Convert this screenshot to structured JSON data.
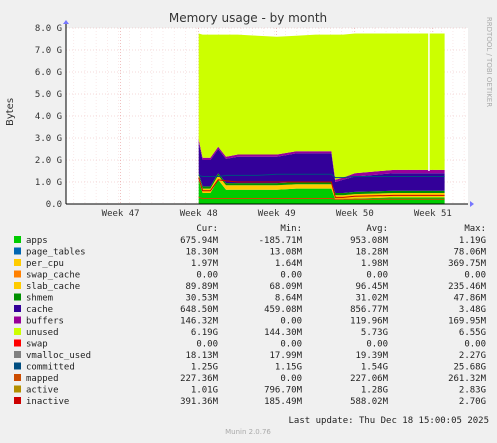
{
  "chart_data": {
    "type": "area",
    "title": "Memory usage - by month",
    "ylabel": "Bytes",
    "side_label": "RRDTOOL / TOBI OETIKER",
    "x_ticks": [
      "Week 47",
      "Week 48",
      "Week 49",
      "Week 50",
      "Week 51"
    ],
    "y_ticks": [
      "0.0",
      "1.0 G",
      "2.0 G",
      "3.0 G",
      "4.0 G",
      "5.0 G",
      "6.0 G",
      "7.0 G",
      "8.0 G"
    ],
    "ylim": [
      0,
      8.0
    ],
    "y_unit": "GB",
    "grid": true,
    "series_colors": {
      "apps": "#00cc00",
      "page_tables": "#0066b3",
      "swap_cache": "#ff8000",
      "slab_cache": "#ffcc00",
      "cache": "#330099",
      "buffers": "#990099",
      "unused": "#ccff00",
      "swap": "#ff0000",
      "committed": "#004d80",
      "mapped": "#cc4c00",
      "active": "#b38f00",
      "inactive": "#cc0000"
    },
    "stack": {
      "x": [
        48.0,
        48.05,
        48.15,
        48.25,
        48.35,
        48.5,
        48.75,
        49.0,
        49.25,
        49.5,
        49.7,
        49.75,
        49.85,
        50.0,
        50.5,
        51.0,
        51.15
      ],
      "apps": [
        1.1,
        0.5,
        0.5,
        1.1,
        0.65,
        0.65,
        0.65,
        0.65,
        0.7,
        0.7,
        0.7,
        0.2,
        0.2,
        0.25,
        0.3,
        0.3,
        0.3
      ],
      "slab_cache": [
        0.2,
        0.2,
        0.2,
        0.2,
        0.2,
        0.2,
        0.2,
        0.2,
        0.2,
        0.2,
        0.2,
        0.2,
        0.2,
        0.2,
        0.2,
        0.2,
        0.2
      ],
      "shmem": [
        0.1,
        0.1,
        0.1,
        0.1,
        0.1,
        0.1,
        0.1,
        0.1,
        0.1,
        0.1,
        0.1,
        0.1,
        0.1,
        0.1,
        0.1,
        0.1,
        0.1
      ],
      "cache": [
        1.4,
        1.2,
        1.2,
        1.1,
        1.1,
        1.2,
        1.2,
        1.2,
        1.3,
        1.3,
        1.3,
        0.5,
        0.6,
        0.7,
        0.8,
        0.8,
        0.8
      ],
      "buffers": [
        0.15,
        0.1,
        0.1,
        0.1,
        0.1,
        0.1,
        0.1,
        0.1,
        0.1,
        0.1,
        0.1,
        0.1,
        0.1,
        0.15,
        0.15,
        0.15,
        0.15
      ],
      "unused": [
        4.8,
        5.6,
        5.6,
        5.1,
        5.55,
        5.45,
        5.4,
        5.35,
        5.25,
        5.3,
        5.3,
        6.6,
        6.5,
        6.35,
        6.2,
        6.2,
        6.2
      ]
    },
    "legend": {
      "headers": [
        "Cur:",
        "Min:",
        "Avg:",
        "Max:"
      ],
      "rows": [
        {
          "name": "apps",
          "cur": "675.94M",
          "min": "-185.71M",
          "avg": "953.08M",
          "max": "1.19G",
          "color": "#00cc00"
        },
        {
          "name": "page_tables",
          "cur": "18.30M",
          "min": "13.08M",
          "avg": "18.28M",
          "max": "78.06M",
          "color": "#0066b3"
        },
        {
          "name": "per_cpu",
          "cur": "1.97M",
          "min": "1.64M",
          "avg": "1.98M",
          "max": "369.75M",
          "color": "#ffcc00"
        },
        {
          "name": "swap_cache",
          "cur": "0.00",
          "min": "0.00",
          "avg": "0.00",
          "max": "0.00",
          "color": "#ff8000"
        },
        {
          "name": "slab_cache",
          "cur": "89.89M",
          "min": "68.09M",
          "avg": "96.45M",
          "max": "235.46M",
          "color": "#ffcc00"
        },
        {
          "name": "shmem",
          "cur": "30.53M",
          "min": "8.64M",
          "avg": "31.02M",
          "max": "47.86M",
          "color": "#008f00"
        },
        {
          "name": "cache",
          "cur": "648.50M",
          "min": "459.08M",
          "avg": "856.77M",
          "max": "3.48G",
          "color": "#330099"
        },
        {
          "name": "buffers",
          "cur": "146.32M",
          "min": "0.00",
          "avg": "119.96M",
          "max": "169.95M",
          "color": "#990099"
        },
        {
          "name": "unused",
          "cur": "6.19G",
          "min": "144.30M",
          "avg": "5.73G",
          "max": "6.55G",
          "color": "#ccff00"
        },
        {
          "name": "swap",
          "cur": "0.00",
          "min": "0.00",
          "avg": "0.00",
          "max": "0.00",
          "color": "#ff0000"
        },
        {
          "name": "vmalloc_used",
          "cur": "18.13M",
          "min": "17.99M",
          "avg": "19.39M",
          "max": "2.27G",
          "color": "#808080"
        },
        {
          "name": "committed",
          "cur": "1.25G",
          "min": "1.15G",
          "avg": "1.54G",
          "max": "25.68G",
          "color": "#004d80"
        },
        {
          "name": "mapped",
          "cur": "227.36M",
          "min": "0.00",
          "avg": "227.06M",
          "max": "261.32M",
          "color": "#cc4c00"
        },
        {
          "name": "active",
          "cur": "1.01G",
          "min": "796.70M",
          "avg": "1.28G",
          "max": "2.83G",
          "color": "#b38f00"
        },
        {
          "name": "inactive",
          "cur": "391.36M",
          "min": "185.49M",
          "avg": "588.02M",
          "max": "2.70G",
          "color": "#cc0000"
        }
      ]
    }
  },
  "footer": {
    "last_update": "Last update: Thu Dec 18 15:00:05 2025",
    "version": "Munin 2.0.76"
  }
}
